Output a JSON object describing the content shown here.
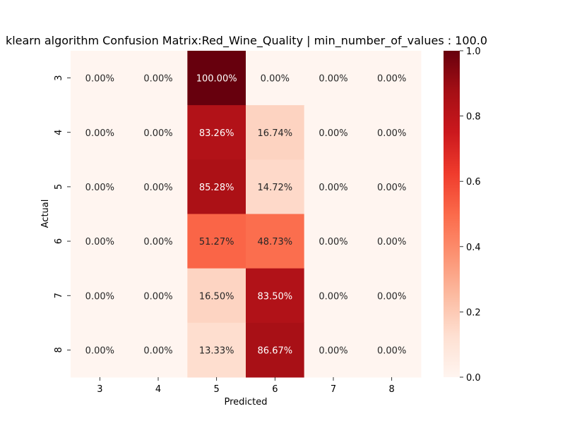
{
  "chart_data": {
    "type": "heatmap",
    "title": "klearn algorithm Confusion Matrix:Red_Wine_Quality | min_number_of_values : 100.0",
    "xlabel": "Predicted",
    "ylabel": "Actual",
    "x_categories": [
      "3",
      "4",
      "5",
      "6",
      "7",
      "8"
    ],
    "y_categories": [
      "3",
      "4",
      "5",
      "6",
      "7",
      "8"
    ],
    "values": [
      [
        0.0,
        0.0,
        1.0,
        0.0,
        0.0,
        0.0
      ],
      [
        0.0,
        0.0,
        0.8326,
        0.1674,
        0.0,
        0.0
      ],
      [
        0.0,
        0.0,
        0.8528,
        0.1472,
        0.0,
        0.0
      ],
      [
        0.0,
        0.0,
        0.5127,
        0.4873,
        0.0,
        0.0
      ],
      [
        0.0,
        0.0,
        0.165,
        0.835,
        0.0,
        0.0
      ],
      [
        0.0,
        0.0,
        0.1333,
        0.8667,
        0.0,
        0.0
      ]
    ],
    "annotations": [
      [
        "0.00%",
        "0.00%",
        "100.00%",
        "0.00%",
        "0.00%",
        "0.00%"
      ],
      [
        "0.00%",
        "0.00%",
        "83.26%",
        "16.74%",
        "0.00%",
        "0.00%"
      ],
      [
        "0.00%",
        "0.00%",
        "85.28%",
        "14.72%",
        "0.00%",
        "0.00%"
      ],
      [
        "0.00%",
        "0.00%",
        "51.27%",
        "48.73%",
        "0.00%",
        "0.00%"
      ],
      [
        "0.00%",
        "0.00%",
        "16.50%",
        "83.50%",
        "0.00%",
        "0.00%"
      ],
      [
        "0.00%",
        "0.00%",
        "13.33%",
        "86.67%",
        "0.00%",
        "0.00%"
      ]
    ],
    "colorbar": {
      "range": [
        0.0,
        1.0
      ],
      "ticks": [
        "0.0",
        "0.2",
        "0.4",
        "0.6",
        "0.8",
        "1.0"
      ],
      "colormap": "Reds"
    }
  }
}
